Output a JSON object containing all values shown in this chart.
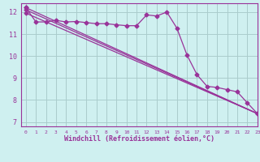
{
  "xlabel": "Windchill (Refroidissement éolien,°C)",
  "background_color": "#cff0f0",
  "grid_color": "#aacccc",
  "line_color": "#993399",
  "xlim": [
    -0.5,
    23
  ],
  "ylim": [
    6.8,
    12.4
  ],
  "yticks": [
    7,
    8,
    9,
    10,
    11,
    12
  ],
  "xticks": [
    0,
    1,
    2,
    3,
    4,
    5,
    6,
    7,
    8,
    9,
    10,
    11,
    12,
    13,
    14,
    15,
    16,
    17,
    18,
    19,
    20,
    21,
    22,
    23
  ],
  "series1_x": [
    0,
    1,
    2,
    3,
    4,
    5,
    6,
    7,
    8,
    9,
    10,
    11,
    12,
    13,
    14,
    15,
    16,
    17,
    18,
    19,
    20,
    21,
    22,
    23
  ],
  "series1_y": [
    12.2,
    11.55,
    11.55,
    11.62,
    11.55,
    11.57,
    11.52,
    11.47,
    11.47,
    11.42,
    11.38,
    11.38,
    11.87,
    11.82,
    12.0,
    11.27,
    10.05,
    9.15,
    8.62,
    8.57,
    8.47,
    8.37,
    7.87,
    7.38
  ],
  "series2_x": [
    0,
    23
  ],
  "series2_y": [
    12.2,
    7.38
  ],
  "series3_x": [
    0,
    23
  ],
  "series3_y": [
    12.1,
    7.38
  ],
  "series4_x": [
    0,
    23
  ],
  "series4_y": [
    11.95,
    7.38
  ]
}
